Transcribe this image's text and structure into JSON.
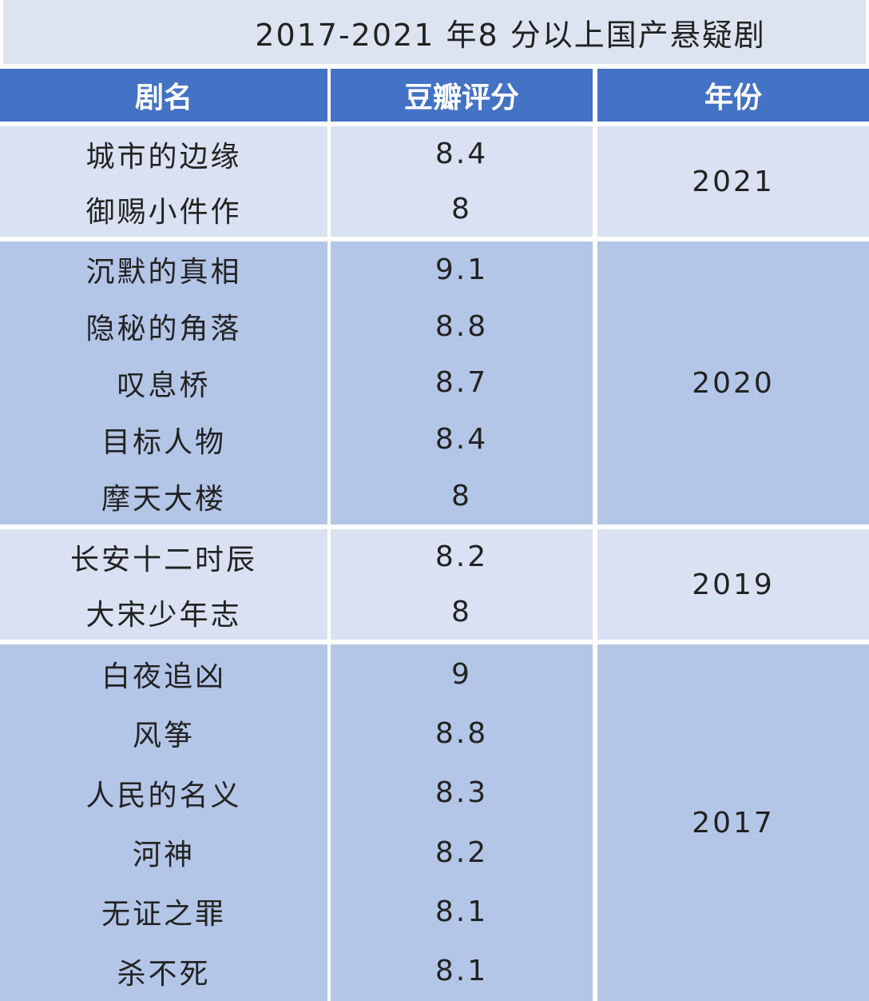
{
  "title": "2017-2021 年8 分以上国产悬疑剧",
  "colors": {
    "header": "#4472c4",
    "row_light": "#d9e1f2",
    "row_dark": "#b4c6e7",
    "title_bg": "#dde4f1"
  },
  "chart_data": {
    "type": "table",
    "title": "2017-2021 年8 分以上国产悬疑剧",
    "columns": [
      "剧名",
      "豆瓣评分",
      "年份"
    ],
    "groups": [
      {
        "year": "2021",
        "rows": [
          {
            "name": "城市的边缘",
            "score": "8.4"
          },
          {
            "name": "御赐小件作",
            "score": "8"
          }
        ]
      },
      {
        "year": "2020",
        "rows": [
          {
            "name": "沉默的真相",
            "score": "9.1"
          },
          {
            "name": "隐秘的角落",
            "score": "8.8"
          },
          {
            "name": "叹息桥",
            "score": "8.7"
          },
          {
            "name": "目标人物",
            "score": "8.4"
          },
          {
            "name": "摩天大楼",
            "score": "8"
          }
        ]
      },
      {
        "year": "2019",
        "rows": [
          {
            "name": "长安十二时辰",
            "score": "8.2"
          },
          {
            "name": "大宋少年志",
            "score": "8"
          }
        ]
      },
      {
        "year": "2017",
        "rows": [
          {
            "name": "白夜追凶",
            "score": "9"
          },
          {
            "name": "风筝",
            "score": "8.8"
          },
          {
            "name": "人民的名义",
            "score": "8.3"
          },
          {
            "name": "河神",
            "score": "8.2"
          },
          {
            "name": "无证之罪",
            "score": "8.1"
          },
          {
            "name": "杀不死",
            "score": "8.1"
          }
        ]
      }
    ]
  }
}
